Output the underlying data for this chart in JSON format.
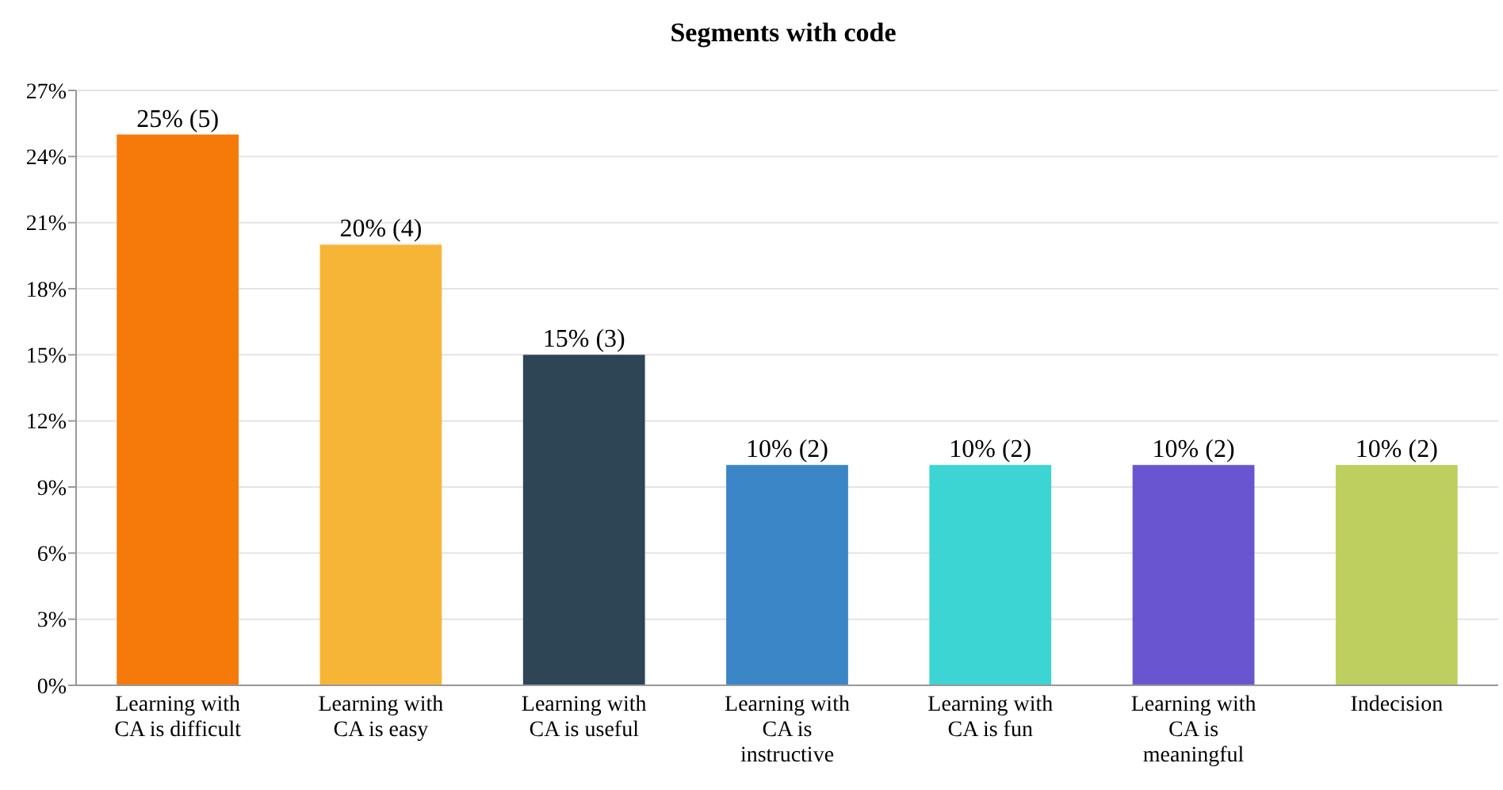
{
  "chart_data": {
    "type": "bar",
    "title": "Segments with code",
    "categories": [
      "Learning with CA is difficult",
      "Learning with CA is easy",
      "Learning with CA is useful",
      "Learning with CA is instructive",
      "Learning with CA is fun",
      "Learning with CA is meaningful",
      "Indecision"
    ],
    "values": [
      25,
      20,
      15,
      10,
      10,
      10,
      10
    ],
    "colors": [
      "#f57a0a",
      "#f7b538",
      "#2d4555",
      "#3a86c6",
      "#3dd4d4",
      "#6a55d0",
      "#bfcf5f"
    ],
    "value_labels": [
      "25% (5)",
      "20% (4)",
      "15% (3)",
      "10% (2)",
      "10% (2)",
      "10% (2)",
      "10% (2)"
    ],
    "ylim": [
      0,
      27
    ],
    "yticks": [
      {
        "value": 0,
        "label": "0%"
      },
      {
        "value": 3,
        "label": "3%"
      },
      {
        "value": 6,
        "label": "6%"
      },
      {
        "value": 9,
        "label": "9%"
      },
      {
        "value": 12,
        "label": "12%"
      },
      {
        "value": 15,
        "label": "15%"
      },
      {
        "value": 18,
        "label": "18%"
      },
      {
        "value": 21,
        "label": "21%"
      },
      {
        "value": 24,
        "label": "24%"
      },
      {
        "value": 27,
        "label": "27%"
      }
    ],
    "grid": "y"
  }
}
